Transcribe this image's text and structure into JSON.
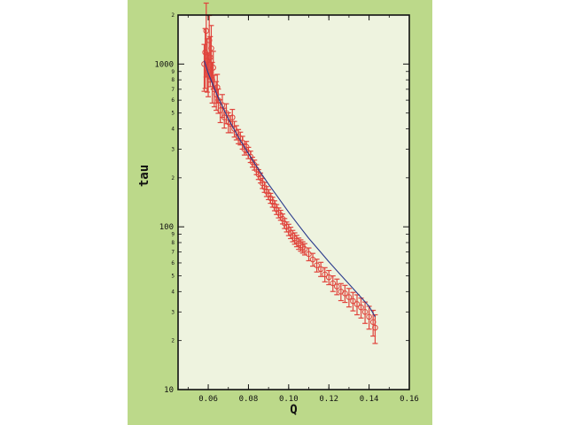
{
  "chart_data": {
    "type": "scatter",
    "title": "",
    "xlabel": "Q",
    "ylabel": "tau",
    "xlim": [
      0.045,
      0.16
    ],
    "ylim": [
      10,
      2000
    ],
    "y_scale": "log",
    "grid": false,
    "legend": "none",
    "x_ticks": [
      "0.06",
      "0.08",
      "0.10",
      "0.12",
      "0.14",
      "0.16"
    ],
    "y_major_ticks": [
      "10",
      "100",
      "1000"
    ],
    "y_minor_labels": [
      "2",
      "3",
      "4",
      "5",
      "6",
      "7",
      "8",
      "9"
    ],
    "colors": {
      "panel_background": "#bcd98a",
      "plot_background": "#eef3df",
      "points": "#e0443c",
      "fit_line": "#2a3a8c",
      "axes": "#111111"
    },
    "series": [
      {
        "kind": "points_with_error_bars",
        "x": [
          0.058,
          0.0585,
          0.059,
          0.0595,
          0.06,
          0.0605,
          0.061,
          0.0615,
          0.062,
          0.0625,
          0.063,
          0.064,
          0.0645,
          0.065,
          0.066,
          0.067,
          0.068,
          0.069,
          0.07,
          0.071,
          0.072,
          0.073,
          0.074,
          0.075,
          0.076,
          0.077,
          0.078,
          0.079,
          0.08,
          0.081,
          0.082,
          0.083,
          0.084,
          0.085,
          0.086,
          0.087,
          0.088,
          0.089,
          0.09,
          0.091,
          0.092,
          0.093,
          0.094,
          0.095,
          0.096,
          0.097,
          0.098,
          0.099,
          0.1,
          0.101,
          0.102,
          0.103,
          0.104,
          0.105,
          0.106,
          0.107,
          0.108,
          0.11,
          0.112,
          0.114,
          0.116,
          0.118,
          0.12,
          0.122,
          0.124,
          0.126,
          0.128,
          0.13,
          0.132,
          0.134,
          0.136,
          0.138,
          0.14,
          0.142,
          0.143
        ],
        "y": [
          1000,
          1180,
          1600,
          1050,
          900,
          1400,
          1100,
          1250,
          800,
          950,
          700,
          650,
          720,
          600,
          520,
          560,
          470,
          500,
          440,
          430,
          470,
          400,
          380,
          360,
          350,
          330,
          300,
          310,
          285,
          270,
          250,
          240,
          225,
          210,
          200,
          185,
          175,
          165,
          158,
          150,
          142,
          135,
          128,
          122,
          118,
          112,
          105,
          100,
          96,
          92,
          88,
          85,
          82,
          79,
          77,
          75,
          73,
          68,
          63,
          58,
          55,
          51,
          49,
          45,
          43,
          40,
          39,
          37,
          35,
          33.5,
          32,
          30,
          28,
          26,
          24
        ],
        "y_err_pct": [
          0.32,
          0.4,
          0.48,
          0.36,
          0.3,
          0.42,
          0.34,
          0.38,
          0.28,
          0.26,
          0.22,
          0.2,
          0.2,
          0.17,
          0.16,
          0.16,
          0.14,
          0.14,
          0.14,
          0.12,
          0.12,
          0.11,
          0.1,
          0.1,
          0.09,
          0.09,
          0.08,
          0.08,
          0.08,
          0.08,
          0.07,
          0.07,
          0.07,
          0.07,
          0.07,
          0.07,
          0.07,
          0.07,
          0.07,
          0.07,
          0.07,
          0.07,
          0.07,
          0.07,
          0.07,
          0.07,
          0.07,
          0.07,
          0.08,
          0.08,
          0.08,
          0.08,
          0.08,
          0.08,
          0.08,
          0.08,
          0.08,
          0.09,
          0.09,
          0.09,
          0.1,
          0.1,
          0.1,
          0.11,
          0.11,
          0.12,
          0.12,
          0.13,
          0.13,
          0.14,
          0.14,
          0.15,
          0.16,
          0.18,
          0.2
        ]
      },
      {
        "kind": "fit_line",
        "x": [
          0.058,
          0.06,
          0.065,
          0.07,
          0.075,
          0.08,
          0.085,
          0.09,
          0.095,
          0.1,
          0.105,
          0.11,
          0.115,
          0.12,
          0.125,
          0.13,
          0.135,
          0.14,
          0.143
        ],
        "y": [
          1050,
          880,
          620,
          460,
          355,
          282,
          225,
          183,
          150,
          123,
          102,
          85,
          72,
          61,
          52,
          44.5,
          38,
          32.5,
          28
        ]
      }
    ]
  }
}
